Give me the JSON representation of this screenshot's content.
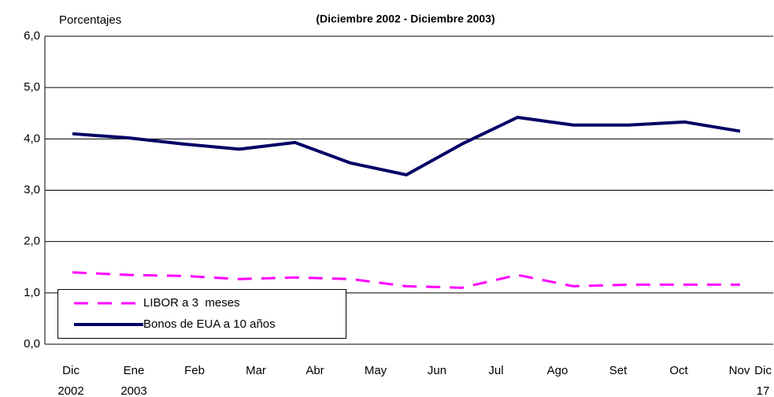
{
  "chart_data": {
    "type": "line",
    "title": "(Diciembre 2002 - Diciembre 2003)",
    "y_label": "Porcentajes",
    "categories": [
      "Dic\n2002",
      "Ene\n2003",
      "Feb",
      "Mar",
      "Abr",
      "May",
      "Jun",
      "Jul",
      "Ago",
      "Set",
      "Oct",
      "Nov",
      "Dic\n17"
    ],
    "series": [
      {
        "name": "LIBOR a 3  meses",
        "color": "#ff00ff",
        "dashed": true,
        "values": [
          1.4,
          1.35,
          1.33,
          1.27,
          1.3,
          1.27,
          1.13,
          1.1,
          1.35,
          1.13,
          1.16,
          1.16,
          1.16
        ]
      },
      {
        "name": "Bonos de EUA a 10 años",
        "color": "#000066",
        "dashed": false,
        "values": [
          4.1,
          4.02,
          3.9,
          3.8,
          3.93,
          3.53,
          3.3,
          3.9,
          4.42,
          4.27,
          4.27,
          4.33,
          4.15
        ]
      }
    ],
    "ylim": [
      0,
      6
    ],
    "yticks": [
      {
        "value": 0,
        "label": "0,0"
      },
      {
        "value": 1,
        "label": "1,0"
      },
      {
        "value": 2,
        "label": "2,0"
      },
      {
        "value": 3,
        "label": "3,0"
      },
      {
        "value": 4,
        "label": "4,0"
      },
      {
        "value": 5,
        "label": "5,0"
      },
      {
        "value": 6,
        "label": "6,0"
      }
    ],
    "grid": true
  }
}
